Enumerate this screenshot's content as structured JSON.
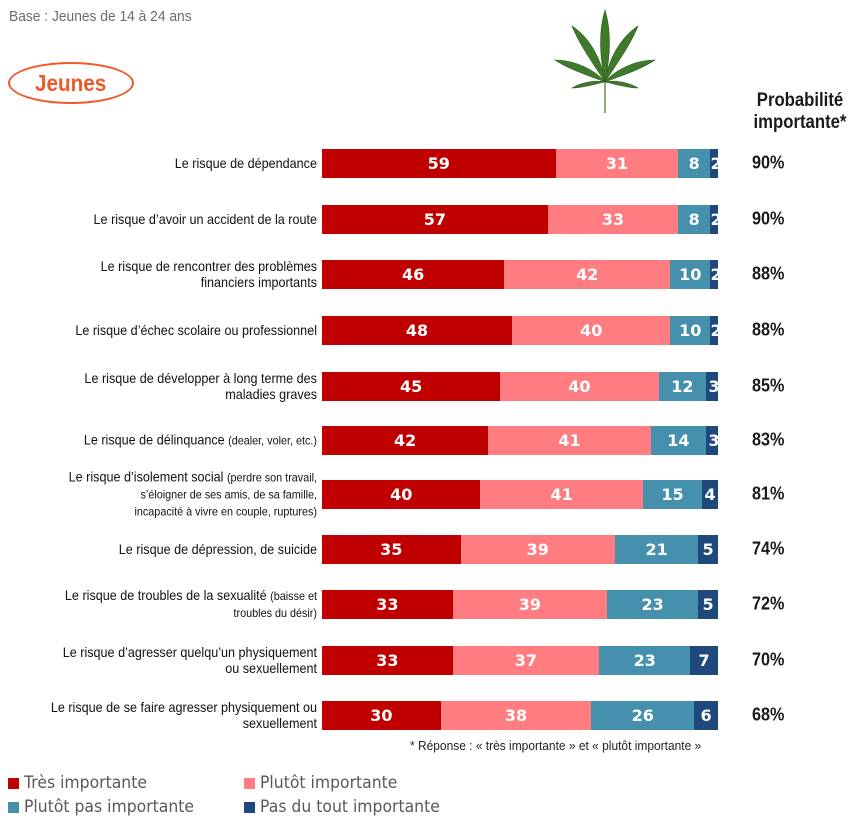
{
  "header": {
    "base": "Base : Jeunes de 14 à 24 ans",
    "badge": "Jeunes",
    "leaf_icon": "cannabis-leaf-icon",
    "probability_header_line1": "Probabilité",
    "probability_header_line2": "importante*"
  },
  "colors": {
    "tres_importante": "#c00000",
    "plutot_importante": "#ff7c80",
    "plutot_pas_importante": "#4490ad",
    "pas_du_tout_importante": "#1f497d",
    "accent": "#ee5a2a"
  },
  "footnote": "* Réponse : « très importante » et « plutôt importante »",
  "chart_data": {
    "type": "bar",
    "orientation": "horizontal",
    "stacked": true,
    "title": "",
    "xlabel": "",
    "ylabel": "",
    "xlim": [
      0,
      100
    ],
    "grid": false,
    "legend_position": "bottom-left",
    "categories": [
      {
        "main": "Le risque de dépendance",
        "detail": ""
      },
      {
        "main": "Le risque d’avoir un accident de la route",
        "detail": ""
      },
      {
        "main": "Le risque de rencontrer des problèmes financiers importants",
        "detail": ""
      },
      {
        "main": "Le risque d’échec scolaire ou professionnel",
        "detail": ""
      },
      {
        "main": "Le risque de développer à long terme des maladies graves",
        "detail": ""
      },
      {
        "main": "Le risque de délinquance",
        "detail": "(dealer, voler, etc.)"
      },
      {
        "main": "Le risque d’isolement social",
        "detail": "(perdre son travail, s’éloigner de ses amis, de sa famille, incapacité à vivre en couple, ruptures)"
      },
      {
        "main": "Le risque de dépression, de suicide",
        "detail": ""
      },
      {
        "main": "Le risque de troubles de la sexualité",
        "detail": "(baisse et troubles du désir)"
      },
      {
        "main": "Le risque d’agresser quelqu’un physiquement ou sexuellement",
        "detail": ""
      },
      {
        "main": "Le risque de se faire agresser physiquement ou sexuellement",
        "detail": ""
      }
    ],
    "label_lines": [
      [
        "Le risque de dépendance"
      ],
      [
        "Le risque d’avoir un accident de la route"
      ],
      [
        "Le risque de rencontrer des problèmes",
        "financiers importants"
      ],
      [
        "Le risque d’échec scolaire ou professionnel"
      ],
      [
        "Le risque de développer à long terme des",
        "maladies graves"
      ],
      [
        "Le risque de délinquance |(dealer, voler, etc.)"
      ],
      [
        "Le risque d’isolement social |(perdre son travail,",
        "|s’éloigner de ses amis, de sa famille,",
        "|incapacité à vivre en couple, ruptures)"
      ],
      [
        "Le risque de dépression, de suicide"
      ],
      [
        "Le risque de troubles de la sexualité |(baisse et",
        "|troubles du désir)"
      ],
      [
        "Le risque d’agresser quelqu’un physiquement",
        "ou sexuellement"
      ],
      [
        "Le risque de se faire agresser physiquement ou",
        "sexuellement"
      ]
    ],
    "series": [
      {
        "name": "Très importante",
        "color": "#c00000",
        "values": [
          59,
          57,
          46,
          48,
          45,
          42,
          40,
          35,
          33,
          33,
          30
        ]
      },
      {
        "name": "Plutôt importante",
        "color": "#ff7c80",
        "values": [
          31,
          33,
          42,
          40,
          40,
          41,
          41,
          39,
          39,
          37,
          38
        ]
      },
      {
        "name": "Plutôt pas importante",
        "color": "#4490ad",
        "values": [
          8,
          8,
          10,
          10,
          12,
          14,
          15,
          21,
          23,
          23,
          26
        ]
      },
      {
        "name": "Pas du tout importante",
        "color": "#1f497d",
        "values": [
          2,
          2,
          2,
          2,
          3,
          3,
          4,
          5,
          5,
          7,
          6
        ]
      }
    ],
    "probabilite_importante": [
      "90%",
      "90%",
      "88%",
      "88%",
      "85%",
      "83%",
      "81%",
      "74%",
      "72%",
      "70%",
      "68%"
    ]
  },
  "legend": [
    {
      "label": "Très importante",
      "color": "#c00000"
    },
    {
      "label": "Plutôt importante",
      "color": "#ff7c80"
    },
    {
      "label": "Plutôt pas importante",
      "color": "#4490ad"
    },
    {
      "label": "Pas du tout importante",
      "color": "#1f497d"
    }
  ]
}
